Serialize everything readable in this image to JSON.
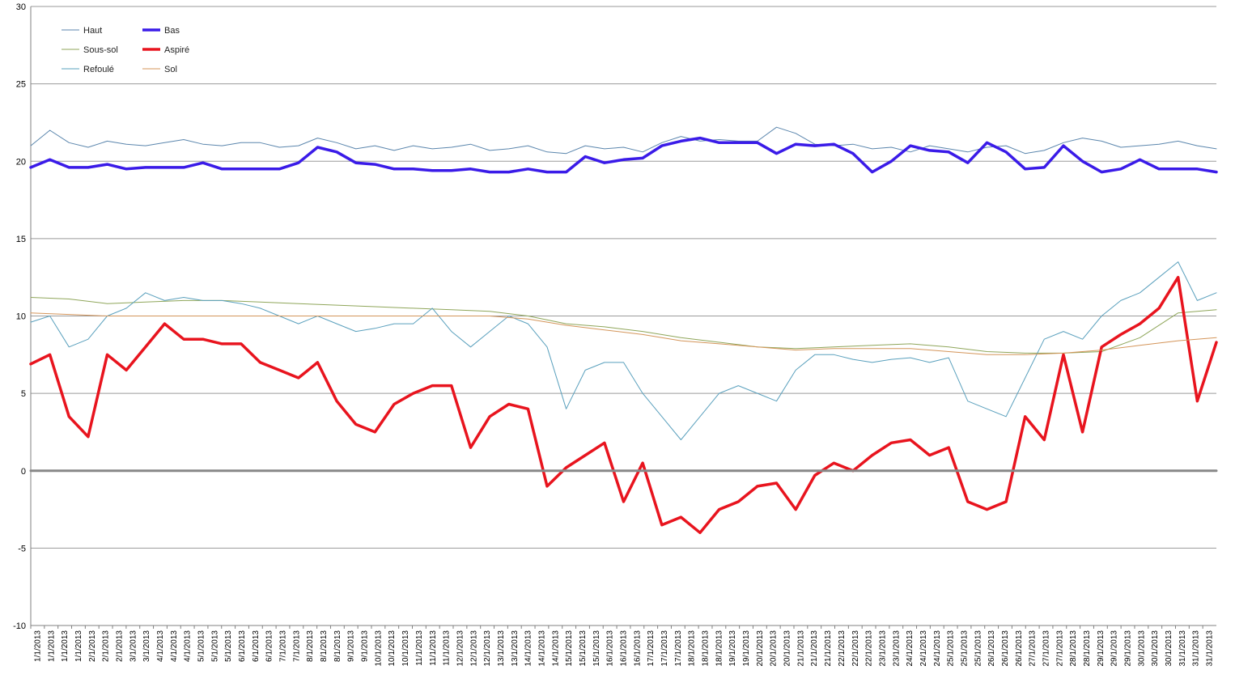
{
  "chart_data": {
    "type": "line",
    "title": "",
    "xlabel": "",
    "ylabel": "",
    "ylim": [
      -10,
      30
    ],
    "yticks": [
      -10,
      -5,
      0,
      5,
      10,
      15,
      20,
      25,
      30
    ],
    "grid": "horizontal",
    "legend_position": "top-left",
    "x_tick_labels": [
      "1/1/2013",
      "1/1/2013",
      "1/1/2013",
      "1/1/2013",
      "2/1/2013",
      "2/1/2013",
      "2/1/2013",
      "3/1/2013",
      "3/1/2013",
      "4/1/2013",
      "4/1/2013",
      "4/1/2013",
      "5/1/2013",
      "5/1/2013",
      "5/1/2013",
      "6/1/2013",
      "6/1/2013",
      "6/1/2013",
      "7/1/2013",
      "7/1/2013",
      "8/1/2013",
      "8/1/2013",
      "8/1/2013",
      "9/1/2013",
      "9/1/2013",
      "10/1/2013",
      "10/1/2013",
      "10/1/2013",
      "11/1/2013",
      "11/1/2013",
      "11/1/2013",
      "12/1/2013",
      "12/1/2013",
      "12/1/2013",
      "13/1/2013",
      "13/1/2013",
      "14/1/2013",
      "14/1/2013",
      "14/1/2013",
      "15/1/2013",
      "15/1/2013",
      "15/1/2013",
      "16/1/2013",
      "16/1/2013",
      "16/1/2013",
      "17/1/2013",
      "17/1/2013",
      "17/1/2013",
      "18/1/2013",
      "18/1/2013",
      "18/1/2013",
      "19/1/2013",
      "19/1/2013",
      "20/1/2013",
      "20/1/2013",
      "20/1/2013",
      "21/1/2013",
      "21/1/2013",
      "21/1/2013",
      "22/1/2013",
      "22/1/2013",
      "22/1/2013",
      "23/1/2013",
      "23/1/2013",
      "24/1/2013",
      "24/1/2013",
      "24/1/2013",
      "25/1/2013",
      "25/1/2013",
      "25/1/2013",
      "26/1/2013",
      "26/1/2013",
      "26/1/2013",
      "27/1/2013",
      "27/1/2013",
      "27/1/2013",
      "28/1/2013",
      "28/1/2013",
      "29/1/2013",
      "29/1/2013",
      "29/1/2013",
      "30/1/2013",
      "30/1/2013",
      "30/1/2013",
      "31/1/2013",
      "31/1/2013",
      "31/1/2013"
    ],
    "x_range_days": [
      0,
      31
    ],
    "legend_left": [
      "Haut",
      "Sous-sol",
      "Refoulé"
    ],
    "legend_right": [
      "Bas",
      "Aspiré",
      "Sol"
    ],
    "series": [
      {
        "name": "Haut",
        "color": "#5b86ad",
        "width": 1,
        "x": [
          0,
          0.5,
          1,
          1.5,
          2,
          2.5,
          3,
          3.5,
          4,
          4.5,
          5,
          5.5,
          6,
          6.5,
          7,
          7.5,
          8,
          8.5,
          9,
          9.5,
          10,
          10.5,
          11,
          11.5,
          12,
          12.5,
          13,
          13.5,
          14,
          14.5,
          15,
          15.5,
          16,
          16.5,
          17,
          17.5,
          18,
          18.5,
          19,
          19.5,
          20,
          20.5,
          21,
          21.5,
          22,
          22.5,
          23,
          23.5,
          24,
          24.5,
          25,
          25.5,
          26,
          26.5,
          27,
          27.5,
          28,
          28.5,
          29,
          29.5,
          30,
          30.5,
          31
        ],
        "y": [
          21.0,
          22.0,
          21.2,
          20.9,
          21.3,
          21.1,
          21.0,
          21.2,
          21.4,
          21.1,
          21.0,
          21.2,
          21.2,
          20.9,
          21.0,
          21.5,
          21.2,
          20.8,
          21.0,
          20.7,
          21.0,
          20.8,
          20.9,
          21.1,
          20.7,
          20.8,
          21.0,
          20.6,
          20.5,
          21.0,
          20.8,
          20.9,
          20.6,
          21.2,
          21.6,
          21.3,
          21.4,
          21.3,
          21.3,
          22.2,
          21.8,
          21.1,
          21.0,
          21.1,
          20.8,
          20.9,
          20.6,
          21.0,
          20.8,
          20.6,
          20.9,
          21.0,
          20.5,
          20.7,
          21.2,
          21.5,
          21.3,
          20.9,
          21.0,
          21.1,
          21.3,
          21.0,
          20.8
        ]
      },
      {
        "name": "Bas",
        "color": "#3a1be8",
        "width": 3.5,
        "x": [
          0,
          0.5,
          1,
          1.5,
          2,
          2.5,
          3,
          3.5,
          4,
          4.5,
          5,
          5.5,
          6,
          6.5,
          7,
          7.5,
          8,
          8.5,
          9,
          9.5,
          10,
          10.5,
          11,
          11.5,
          12,
          12.5,
          13,
          13.5,
          14,
          14.5,
          15,
          15.5,
          16,
          16.5,
          17,
          17.5,
          18,
          18.5,
          19,
          19.5,
          20,
          20.5,
          21,
          21.5,
          22,
          22.5,
          23,
          23.5,
          24,
          24.5,
          25,
          25.5,
          26,
          26.5,
          27,
          27.5,
          28,
          28.5,
          29,
          29.5,
          30,
          30.5,
          31
        ],
        "y": [
          19.6,
          20.1,
          19.6,
          19.6,
          19.8,
          19.5,
          19.6,
          19.6,
          19.6,
          19.9,
          19.5,
          19.5,
          19.5,
          19.5,
          19.9,
          20.9,
          20.6,
          19.9,
          19.8,
          19.5,
          19.5,
          19.4,
          19.4,
          19.5,
          19.3,
          19.3,
          19.5,
          19.3,
          19.3,
          20.3,
          19.9,
          20.1,
          20.2,
          21.0,
          21.3,
          21.5,
          21.2,
          21.2,
          21.2,
          20.5,
          21.1,
          21.0,
          21.1,
          20.5,
          19.3,
          20.0,
          21.0,
          20.7,
          20.6,
          19.9,
          21.2,
          20.6,
          19.5,
          19.6,
          21.0,
          20.0,
          19.3,
          19.5,
          20.1,
          19.5,
          19.5,
          19.5,
          19.3
        ]
      },
      {
        "name": "Sous-sol",
        "color": "#8fa65a",
        "width": 1,
        "x": [
          0,
          1,
          2,
          3,
          4,
          5,
          6,
          7,
          8,
          9,
          10,
          11,
          12,
          13,
          14,
          15,
          16,
          17,
          18,
          19,
          20,
          21,
          22,
          23,
          24,
          25,
          26,
          27,
          28,
          29,
          30,
          31
        ],
        "y": [
          11.2,
          11.1,
          10.8,
          10.9,
          11.0,
          11.0,
          10.9,
          10.8,
          10.7,
          10.6,
          10.5,
          10.4,
          10.3,
          10.0,
          9.5,
          9.3,
          9.0,
          8.6,
          8.3,
          8.0,
          7.9,
          8.0,
          8.1,
          8.2,
          8.0,
          7.7,
          7.6,
          7.6,
          7.7,
          8.6,
          10.2,
          10.4
        ]
      },
      {
        "name": "Aspiré",
        "color": "#e8141e",
        "width": 3.5,
        "x": [
          0,
          0.5,
          1,
          1.5,
          2,
          2.5,
          3,
          3.5,
          4,
          4.5,
          5,
          5.5,
          6,
          6.5,
          7,
          7.5,
          8,
          8.5,
          9,
          9.5,
          10,
          10.5,
          11,
          11.5,
          12,
          12.5,
          13,
          13.5,
          14,
          14.5,
          15,
          15.5,
          16,
          16.5,
          17,
          17.5,
          18,
          18.5,
          19,
          19.5,
          20,
          20.5,
          21,
          21.5,
          22,
          22.5,
          23,
          23.5,
          24,
          24.5,
          25,
          25.5,
          26,
          26.5,
          27,
          27.5,
          28,
          28.5,
          29,
          29.5,
          30,
          30.5,
          31
        ],
        "y": [
          6.9,
          7.5,
          3.5,
          2.2,
          7.5,
          6.5,
          8.0,
          9.5,
          8.5,
          8.5,
          8.2,
          8.2,
          7.0,
          6.5,
          6.0,
          7.0,
          4.5,
          3.0,
          2.5,
          4.3,
          5.0,
          5.5,
          5.5,
          1.5,
          3.5,
          4.3,
          4.0,
          -1.0,
          0.2,
          1.0,
          1.8,
          -2.0,
          0.5,
          -3.5,
          -3.0,
          -4.0,
          -2.5,
          -2.0,
          -1.0,
          -0.8,
          -2.5,
          -0.3,
          0.5,
          0.0,
          1.0,
          1.8,
          2.0,
          1.0,
          1.5,
          -2.0,
          -2.5,
          -2.0,
          3.5,
          2.0,
          7.5,
          2.5,
          8.0,
          8.8,
          9.5,
          10.5,
          12.5,
          4.5,
          8.3
        ]
      },
      {
        "name": "Refoulé",
        "color": "#5aa0bd",
        "width": 1,
        "x": [
          0,
          0.5,
          1,
          1.5,
          2,
          2.5,
          3,
          3.5,
          4,
          4.5,
          5,
          5.5,
          6,
          6.5,
          7,
          7.5,
          8,
          8.5,
          9,
          9.5,
          10,
          10.5,
          11,
          11.5,
          12,
          12.5,
          13,
          13.5,
          14,
          14.5,
          15,
          15.5,
          16,
          16.5,
          17,
          17.5,
          18,
          18.5,
          19,
          19.5,
          20,
          20.5,
          21,
          21.5,
          22,
          22.5,
          23,
          23.5,
          24,
          24.5,
          25,
          25.5,
          26,
          26.5,
          27,
          27.5,
          28,
          28.5,
          29,
          29.5,
          30,
          30.5,
          31
        ],
        "y": [
          9.6,
          10.0,
          8.0,
          8.5,
          10.0,
          10.5,
          11.5,
          11.0,
          11.2,
          11.0,
          11.0,
          10.8,
          10.5,
          10.0,
          9.5,
          10.0,
          9.5,
          9.0,
          9.2,
          9.5,
          9.5,
          10.5,
          9.0,
          8.0,
          9.0,
          10.0,
          9.5,
          8.0,
          4.0,
          6.5,
          7.0,
          7.0,
          5.0,
          3.5,
          2.0,
          3.5,
          5.0,
          5.5,
          5.0,
          4.5,
          6.5,
          7.5,
          7.5,
          7.2,
          7.0,
          7.2,
          7.3,
          7.0,
          7.3,
          4.5,
          4.0,
          3.5,
          6.0,
          8.5,
          9.0,
          8.5,
          10.0,
          11.0,
          11.5,
          12.5,
          13.5,
          11.0,
          11.5
        ]
      },
      {
        "name": "Sol",
        "color": "#d4955a",
        "width": 1,
        "x": [
          0,
          1,
          2,
          3,
          4,
          5,
          6,
          7,
          8,
          9,
          10,
          11,
          12,
          13,
          14,
          15,
          16,
          17,
          18,
          19,
          20,
          21,
          22,
          23,
          24,
          25,
          26,
          27,
          28,
          29,
          30,
          31
        ],
        "y": [
          10.2,
          10.1,
          10.0,
          10.0,
          10.0,
          10.0,
          10.0,
          10.0,
          10.0,
          10.0,
          10.0,
          10.0,
          10.0,
          9.8,
          9.4,
          9.1,
          8.8,
          8.4,
          8.2,
          8.0,
          7.8,
          7.9,
          7.9,
          7.9,
          7.7,
          7.5,
          7.5,
          7.6,
          7.8,
          8.1,
          8.4,
          8.6
        ]
      },
      {
        "name": "",
        "color": "#888888",
        "width": 3,
        "x": [
          0,
          31
        ],
        "y": [
          0,
          0
        ]
      }
    ]
  }
}
